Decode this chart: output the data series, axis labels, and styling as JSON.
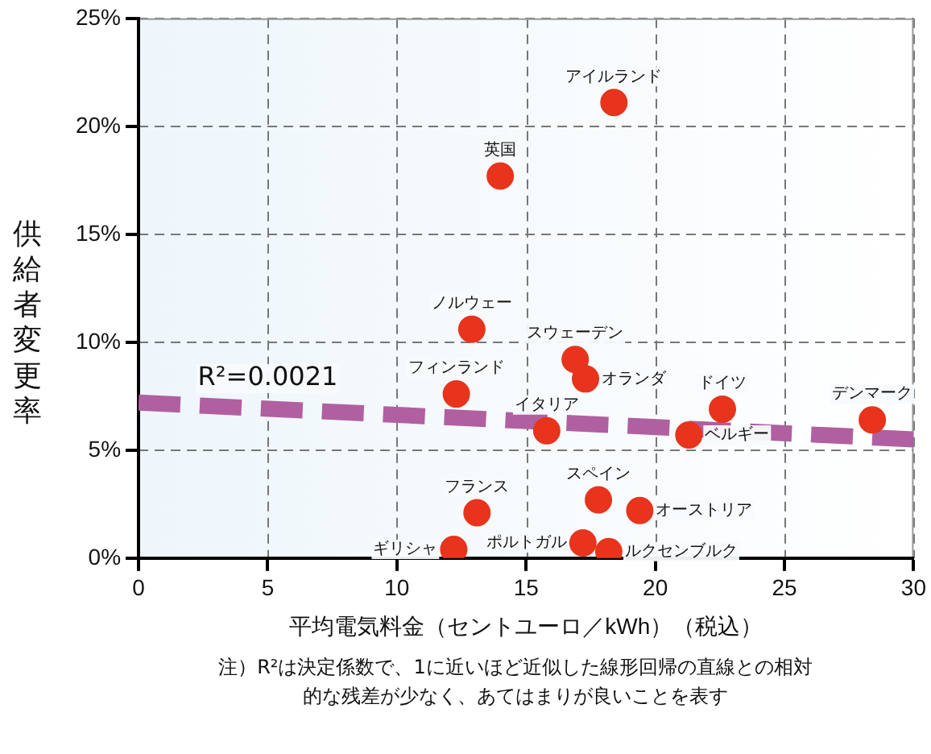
{
  "chart_data": {
    "type": "scatter",
    "xlabel": "平均電気料金（セントユーロ／kWh）（税込）",
    "ylabel": "供給者変更率",
    "xlim": [
      0,
      30
    ],
    "xticks": [
      0,
      5,
      10,
      15,
      20,
      25,
      30
    ],
    "ylim": [
      0,
      25
    ],
    "yticks": [
      {
        "value": 0,
        "label": "0%"
      },
      {
        "value": 5,
        "label": "5%"
      },
      {
        "value": 10,
        "label": "10%"
      },
      {
        "value": 15,
        "label": "15%"
      },
      {
        "value": 20,
        "label": "20%"
      },
      {
        "value": 25,
        "label": "25%"
      }
    ],
    "grid": true,
    "legend": false,
    "marker": "circle",
    "series": [
      {
        "type": "scatter",
        "color": "#e8341c",
        "x": [
          18.4,
          14.0,
          12.9,
          12.3,
          16.9,
          17.3,
          22.6,
          28.4,
          15.8,
          21.3,
          13.1,
          17.8,
          19.4,
          17.2,
          18.2,
          12.2
        ],
        "values": [
          21.1,
          17.7,
          10.6,
          7.6,
          9.2,
          8.3,
          6.9,
          6.4,
          5.9,
          5.7,
          2.1,
          2.7,
          2.2,
          0.7,
          0.3,
          0.4
        ]
      },
      {
        "type": "line",
        "color": "#b060a0",
        "line_style": "dashed",
        "marker": "none",
        "x": [
          0,
          30
        ],
        "values": [
          7.2,
          5.5
        ]
      }
    ],
    "annotations": [
      {
        "text": "アイルランド",
        "x": 18.4,
        "y": 21.1
      },
      {
        "text": "英国",
        "x": 14.0,
        "y": 17.7
      },
      {
        "text": "ノルウェー",
        "x": 12.9,
        "y": 10.6
      },
      {
        "text": "フィンランド",
        "x": 12.3,
        "y": 7.6
      },
      {
        "text": "スウェーデン",
        "x": 16.9,
        "y": 9.2
      },
      {
        "text": "オランダ",
        "x": 17.3,
        "y": 8.3
      },
      {
        "text": "ドイツ",
        "x": 22.6,
        "y": 6.9
      },
      {
        "text": "デンマーク",
        "x": 28.4,
        "y": 6.4
      },
      {
        "text": "イタリア",
        "x": 15.8,
        "y": 5.9
      },
      {
        "text": "ベルギー",
        "x": 21.3,
        "y": 5.7
      },
      {
        "text": "フランス",
        "x": 13.1,
        "y": 2.1
      },
      {
        "text": "スペイン",
        "x": 17.8,
        "y": 2.7
      },
      {
        "text": "オーストリア",
        "x": 19.4,
        "y": 2.2
      },
      {
        "text": "ポルトガル",
        "x": 17.2,
        "y": 0.7
      },
      {
        "text": "ルクセンブルク",
        "x": 18.2,
        "y": 0.3
      },
      {
        "text": "ギリシャ",
        "x": 12.2,
        "y": 0.4
      },
      {
        "text": "R²=0.0021",
        "x": 5,
        "y": 6.9
      },
      "注）R²は決定係数で、1に近いほど近似した線形回帰の直線との相対的な残差が少なく、あてはまりが良いことを表す"
    ]
  }
}
